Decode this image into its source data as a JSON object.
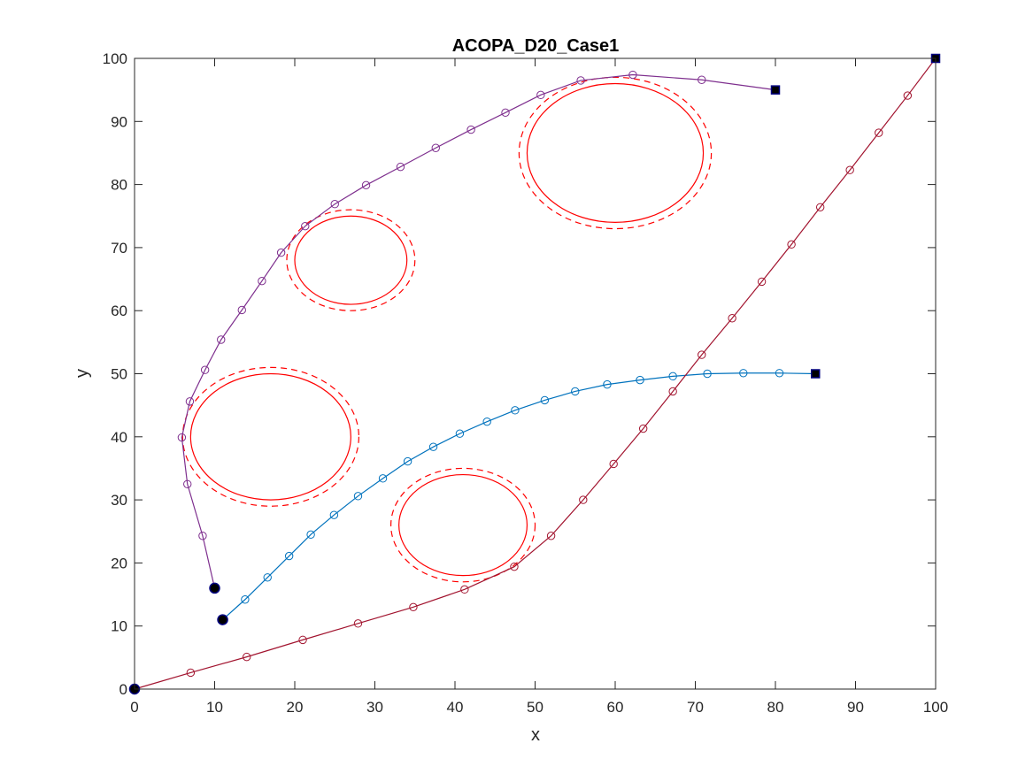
{
  "chart_data": {
    "type": "line",
    "title": "ACOPA_D20_Case1",
    "xlabel": "x",
    "ylabel": "y",
    "xlim": [
      0,
      100
    ],
    "ylim": [
      0,
      100
    ],
    "xticks": [
      0,
      10,
      20,
      30,
      40,
      50,
      60,
      70,
      80,
      90,
      100
    ],
    "yticks": [
      0,
      10,
      20,
      30,
      40,
      50,
      60,
      70,
      80,
      90,
      100
    ],
    "grid": false,
    "colors": {
      "axes": "#262626",
      "obstacle": "#ff0000",
      "endpoint": "#000080"
    },
    "obstacles": [
      {
        "cx": 27,
        "cy": 68,
        "rx": 7,
        "ry": 7,
        "margin": 1
      },
      {
        "cx": 17,
        "cy": 40,
        "rx": 10,
        "ry": 10,
        "margin": 1
      },
      {
        "cx": 41,
        "cy": 26,
        "rx": 8,
        "ry": 8,
        "margin": 1
      },
      {
        "cx": 60,
        "cy": 85,
        "rx": 11,
        "ry": 11,
        "margin": 1
      }
    ],
    "series": [
      {
        "color": "#7e2f8e",
        "start": [
          10,
          16
        ],
        "goal": [
          80,
          95
        ],
        "x": [
          10,
          8.5,
          6.6,
          5.9,
          6.9,
          8.8,
          10.8,
          13.4,
          15.9,
          18.3,
          21.3,
          25.0,
          28.9,
          33.2,
          37.6,
          42.0,
          46.3,
          50.7,
          55.7,
          62.2,
          70.8,
          80
        ],
        "y": [
          16,
          24.3,
          32.5,
          39.9,
          45.6,
          50.6,
          55.4,
          60.1,
          64.7,
          69.2,
          73.4,
          76.9,
          79.9,
          82.8,
          85.8,
          88.7,
          91.4,
          94.2,
          96.5,
          97.4,
          96.6,
          95
        ]
      },
      {
        "color": "#0072bd",
        "start": [
          11,
          11
        ],
        "goal": [
          85,
          50
        ],
        "x": [
          11,
          13.8,
          16.6,
          19.3,
          22.0,
          24.9,
          27.9,
          31.0,
          34.1,
          37.3,
          40.6,
          44.0,
          47.5,
          51.2,
          55.0,
          59.0,
          63.1,
          67.2,
          71.5,
          76.0,
          80.5,
          85
        ],
        "y": [
          11,
          14.2,
          17.7,
          21.1,
          24.5,
          27.6,
          30.6,
          33.4,
          36.1,
          38.4,
          40.5,
          42.4,
          44.2,
          45.8,
          47.2,
          48.3,
          49.0,
          49.6,
          50.0,
          50.1,
          50.1,
          50
        ]
      },
      {
        "color": "#a2142f",
        "start": [
          0,
          0
        ],
        "goal": [
          100,
          100
        ],
        "x": [
          0,
          7.0,
          14.0,
          21.0,
          27.9,
          34.8,
          41.2,
          47.4,
          52.0,
          56.0,
          59.8,
          63.5,
          67.2,
          70.8,
          74.6,
          78.3,
          82.0,
          85.6,
          89.3,
          92.9,
          96.5,
          100
        ],
        "y": [
          0,
          2.6,
          5.1,
          7.8,
          10.4,
          13.0,
          15.8,
          19.4,
          24.3,
          30.0,
          35.7,
          41.3,
          47.2,
          53.0,
          58.8,
          64.6,
          70.5,
          76.4,
          82.3,
          88.2,
          94.1,
          100
        ]
      }
    ]
  }
}
